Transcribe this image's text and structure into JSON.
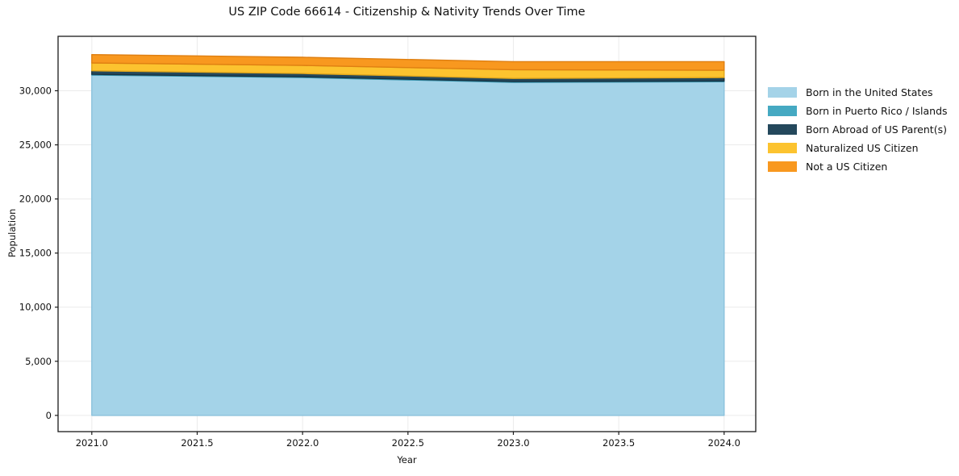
{
  "title": "US ZIP Code 66614 - Citizenship & Nativity Trends Over Time",
  "chart_data": {
    "type": "area",
    "stacked": true,
    "title": "US ZIP Code 66614 - Citizenship & Nativity Trends Over Time",
    "xlabel": "Year",
    "ylabel": "Population",
    "x": [
      2021,
      2022,
      2023,
      2024
    ],
    "series": [
      {
        "name": "Born in the United States",
        "color": "#a4d3e8",
        "edge": "#8bc2dc",
        "values": [
          31450,
          31220,
          30780,
          30830
        ]
      },
      {
        "name": "Born in Puerto Rico / Islands",
        "color": "#45a9c2",
        "edge": "#3391ab",
        "values": [
          70,
          70,
          70,
          70
        ]
      },
      {
        "name": "Born Abroad of US Parent(s)",
        "color": "#24485c",
        "edge": "#183342",
        "values": [
          330,
          300,
          290,
          320
        ]
      },
      {
        "name": "Naturalized US Citizen",
        "color": "#fcc32f",
        "edge": "#e2a71b",
        "values": [
          720,
          750,
          800,
          670
        ]
      },
      {
        "name": "Not a US Citizen",
        "color": "#f8981f",
        "edge": "#df7f11",
        "values": [
          770,
          750,
          750,
          800
        ]
      }
    ],
    "totals": [
      33340,
      33090,
      32690,
      32690
    ],
    "xticks": [
      2021.0,
      2021.5,
      2022.0,
      2022.5,
      2023.0,
      2023.5,
      2024.0
    ],
    "yticks": [
      0,
      5000,
      10000,
      15000,
      20000,
      25000,
      30000
    ],
    "xlim": [
      2020.84,
      2024.15
    ],
    "ylim": [
      -1500,
      35030
    ],
    "grid": true,
    "grid_color": "#ebebeb",
    "spine_color": "#1a1a1a",
    "legend_position": "right"
  }
}
